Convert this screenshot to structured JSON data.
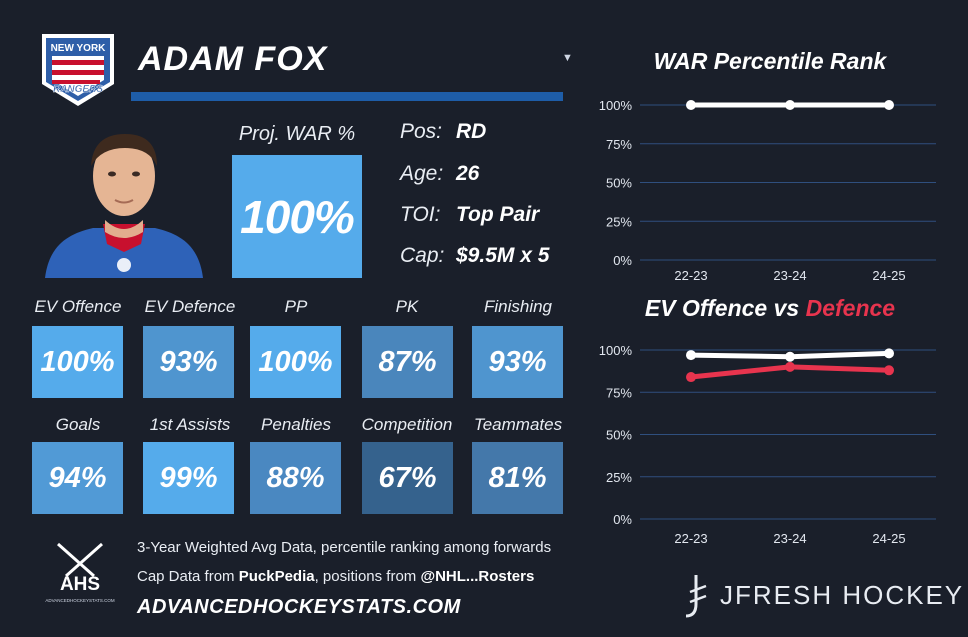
{
  "team": {
    "logo_line1": "NEW YORK",
    "logo_line2": "RANGERS"
  },
  "player": {
    "name": "ADAM FOX"
  },
  "proj_war": {
    "label": "Proj. WAR %",
    "value": "100%"
  },
  "info": [
    {
      "key": "Pos:",
      "value": "RD"
    },
    {
      "key": "Age:",
      "value": "26"
    },
    {
      "key": "TOI:",
      "value": "Top Pair"
    },
    {
      "key": "Cap:",
      "value": "$9.5M x 5"
    }
  ],
  "stats_row1": [
    {
      "label": "EV Offence",
      "value": "100%",
      "color": "#55abeb"
    },
    {
      "label": "EV Defence",
      "value": "93%",
      "color": "#4f95cf"
    },
    {
      "label": "PP",
      "value": "100%",
      "color": "#55abeb"
    },
    {
      "label": "PK",
      "value": "87%",
      "color": "#4a86bc"
    },
    {
      "label": "Finishing",
      "value": "93%",
      "color": "#4f95cf"
    }
  ],
  "stats_row2": [
    {
      "label": "Goals",
      "value": "94%",
      "color": "#519ad6"
    },
    {
      "label": "1st Assists",
      "value": "99%",
      "color": "#55abeb"
    },
    {
      "label": "Penalties",
      "value": "88%",
      "color": "#4a88c1"
    },
    {
      "label": "Competition",
      "value": "67%",
      "color": "#35628d"
    },
    {
      "label": "Teammates",
      "value": "81%",
      "color": "#4478aa"
    }
  ],
  "footer": {
    "ahs_logo": "AHS",
    "ahs_logo_sub": "ADVANCEDHOCKEYSTATS.COM",
    "line1": "3-Year Weighted Avg Data, percentile ranking among forwards",
    "line2_a": "Cap Data from ",
    "line2_b": "PuckPedia",
    "line2_c": ", positions from ",
    "line2_d": "@NHL...Rosters",
    "line3": "ADVANCEDHOCKEYSTATS.COM",
    "brand": "JFRESH HOCKEY"
  },
  "chart_data": [
    {
      "type": "line",
      "title": "WAR Percentile Rank",
      "categories": [
        "22-23",
        "23-24",
        "24-25"
      ],
      "yticks": [
        "100%",
        "75%",
        "50%",
        "25%",
        "0%"
      ],
      "ylim": [
        0,
        100
      ],
      "series": [
        {
          "values": [
            100,
            100,
            100
          ],
          "color": "#ffffff"
        }
      ]
    },
    {
      "type": "line",
      "title_a": "EV Offence",
      "title_b": " vs ",
      "title_c": "Defence",
      "categories": [
        "22-23",
        "23-24",
        "24-25"
      ],
      "yticks": [
        "100%",
        "75%",
        "50%",
        "25%",
        "0%"
      ],
      "ylim": [
        0,
        100
      ],
      "series": [
        {
          "values": [
            97,
            96,
            98
          ],
          "color": "#ffffff"
        },
        {
          "values": [
            84,
            90,
            88
          ],
          "color": "#e8344e"
        }
      ]
    }
  ]
}
